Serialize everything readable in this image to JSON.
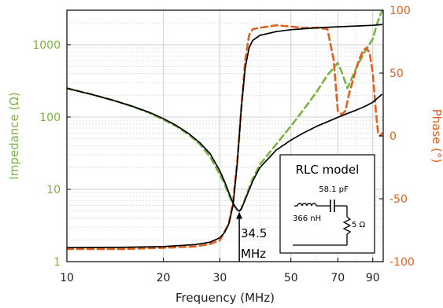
{
  "chart_data": {
    "type": "line",
    "xlabel": "Frequency (MHz)",
    "ylabel_left": "Impedance (Ω)",
    "ylabel_right": "Phase (°)",
    "x_scale": "log",
    "y_left_scale": "log",
    "xlim": [
      10,
      97
    ],
    "ylim_left": [
      1,
      3000
    ],
    "ylim_right": [
      -100,
      100
    ],
    "x_ticks": [
      10,
      20,
      30,
      50,
      70,
      90
    ],
    "y_left_ticks": [
      1,
      10,
      100,
      1000
    ],
    "y_left_tick_labels": [
      "1",
      "10",
      "100",
      "1000"
    ],
    "y_right_ticks": [
      -100,
      -50,
      0,
      50,
      100
    ],
    "grid": true,
    "colors": {
      "measured_impedance": "#7cb342",
      "measured_phase": "#e0601e",
      "model": "#000000",
      "left_axis": "#7cb342",
      "right_axis": "#e0601e"
    },
    "series": [
      {
        "axis": "left",
        "style": "dashed-green",
        "x": [
          10,
          12,
          14,
          16,
          18,
          20,
          22,
          24,
          26,
          28,
          30,
          31,
          32,
          33,
          34,
          34.5,
          35,
          36,
          38,
          40,
          45,
          50,
          55,
          60,
          65,
          70,
          72,
          75,
          80,
          85,
          90,
          93,
          96
        ],
        "y": [
          250,
          205,
          170,
          140,
          115,
          92,
          74,
          57,
          42,
          28,
          16,
          12,
          8.5,
          6.2,
          5.2,
          5.0,
          5.4,
          7.5,
          14,
          22,
          42,
          75,
          130,
          220,
          380,
          560,
          420,
          250,
          480,
          800,
          1200,
          2000,
          2900
        ]
      },
      {
        "axis": "right",
        "style": "dashed-orange",
        "x": [
          10,
          15,
          20,
          25,
          28,
          30,
          32,
          33,
          34,
          34.5,
          35,
          36,
          37,
          38,
          40,
          45,
          50,
          55,
          60,
          65,
          68,
          70,
          72,
          74,
          76,
          78,
          80,
          82,
          84,
          86,
          88,
          90,
          92,
          93.5,
          95,
          96
        ],
        "y": [
          -90,
          -90,
          -89,
          -88,
          -86,
          -83,
          -70,
          -52,
          -20,
          0,
          22,
          60,
          80,
          85,
          86,
          88,
          87,
          86,
          86,
          85,
          60,
          20,
          17,
          20,
          34,
          44,
          54,
          62,
          68,
          70,
          66,
          50,
          20,
          2,
          0,
          2
        ]
      },
      {
        "axis": "left",
        "style": "solid-black",
        "x": [
          10,
          12,
          14,
          16,
          18,
          20,
          22,
          24,
          26,
          28,
          30,
          31,
          32,
          33,
          34,
          34.5,
          35,
          36,
          38,
          40,
          45,
          50,
          55,
          60,
          65,
          70,
          75,
          80,
          85,
          90,
          96
        ],
        "y": [
          250,
          204,
          169,
          141,
          117,
          95,
          76,
          59,
          44,
          31,
          18,
          13,
          9,
          6.4,
          5.2,
          5.0,
          5.3,
          7.2,
          13,
          20,
          35,
          48,
          61,
          74,
          86,
          99,
          112,
          125,
          140,
          160,
          205
        ]
      },
      {
        "axis": "right",
        "style": "solid-black",
        "x": [
          10,
          15,
          20,
          25,
          28,
          30,
          31,
          32,
          33,
          34,
          34.5,
          35,
          36,
          37,
          38,
          40,
          45,
          50,
          60,
          70,
          80,
          90,
          96
        ],
        "y": [
          -88.8,
          -88.6,
          -88.0,
          -86.5,
          -84.5,
          -81,
          -77,
          -70,
          -55,
          -22,
          0,
          22,
          54,
          70,
          76,
          80,
          83,
          84.5,
          86,
          86.8,
          87.4,
          88,
          88.6
        ]
      }
    ],
    "annotations": {
      "resonance_line1": "34.5",
      "resonance_line2": "MHz",
      "resonance_x": 34.5,
      "resonance_y": 5.0
    },
    "inset": {
      "title": "RLC model",
      "capacitor": "58.1 pF",
      "inductor": "366 nH",
      "resistor": "5 Ω"
    }
  }
}
